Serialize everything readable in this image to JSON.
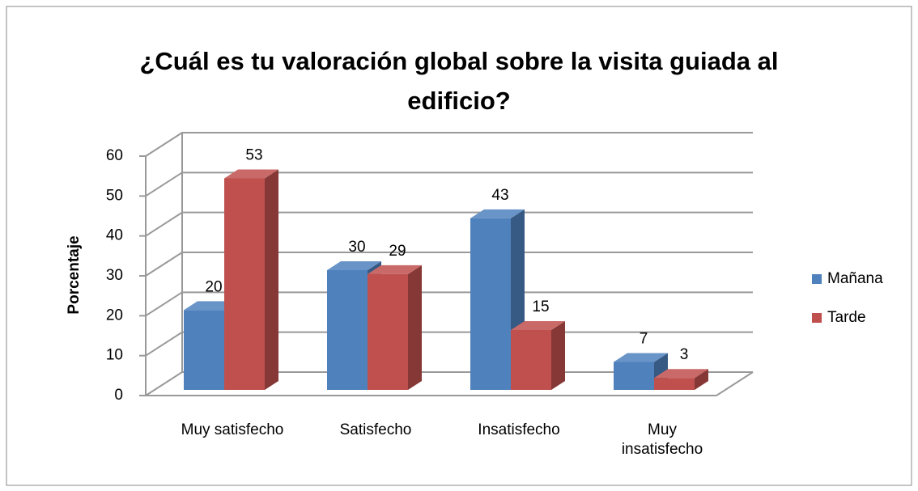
{
  "chart_data": {
    "type": "bar3d",
    "title": "¿Cuál es tu valoración global sobre la visita guiada al edificio?",
    "y_label": "Porcentaje",
    "categories": [
      "Muy satisfecho",
      "Satisfecho",
      "Insatisfecho",
      "Muy insatisfecho"
    ],
    "series": [
      {
        "name": "Mañana",
        "color": "#4f81bd",
        "values": [
          20,
          30,
          43,
          7
        ]
      },
      {
        "name": "Tarde",
        "color": "#c0504d",
        "values": [
          53,
          29,
          15,
          3
        ]
      }
    ],
    "ylim": [
      0,
      60
    ],
    "yticks": [
      0,
      10,
      20,
      30,
      40,
      50,
      60
    ],
    "grid": true,
    "legend": "right"
  }
}
